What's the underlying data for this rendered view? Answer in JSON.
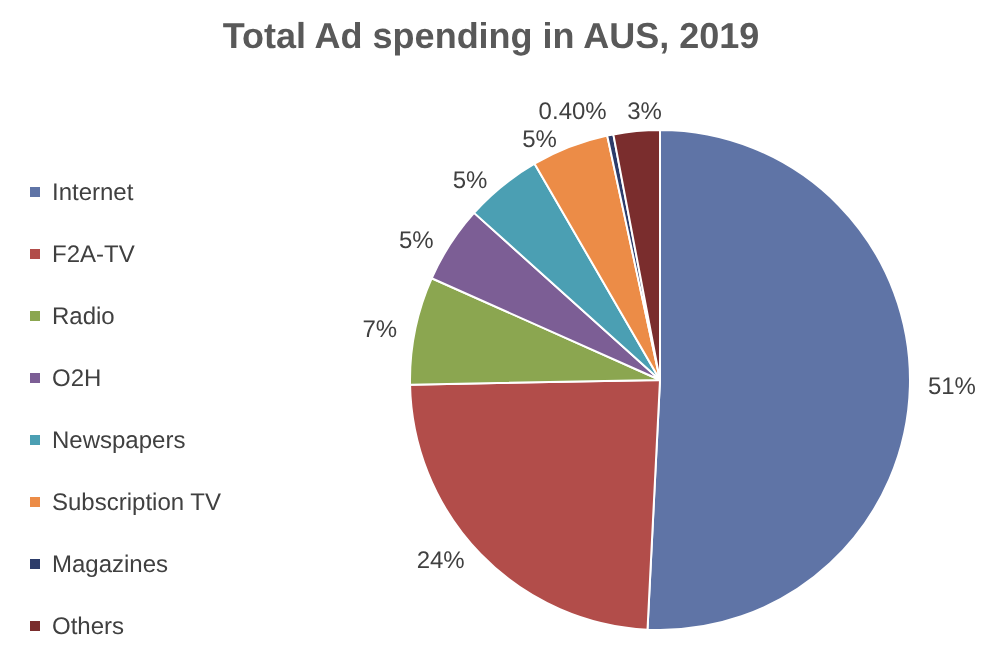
{
  "chart_data": {
    "type": "pie",
    "title": "Total Ad spending in AUS, 2019",
    "categories": [
      "Internet",
      "F2A-TV",
      "Radio",
      "O2H",
      "Newspapers",
      "Subscription TV",
      "Magazines",
      "Others"
    ],
    "values": [
      51,
      24,
      7,
      5,
      5,
      5,
      0.4,
      3
    ],
    "value_labels": [
      "51%",
      "24%",
      "7%",
      "5%",
      "5%",
      "5%",
      "0.40%",
      "3%"
    ],
    "colors": [
      "#5f74a6",
      "#b24d4a",
      "#8ba650",
      "#7c5e95",
      "#4b9fb3",
      "#ec8c47",
      "#2c3c6a",
      "#7a2d2d"
    ],
    "legend": "left"
  }
}
